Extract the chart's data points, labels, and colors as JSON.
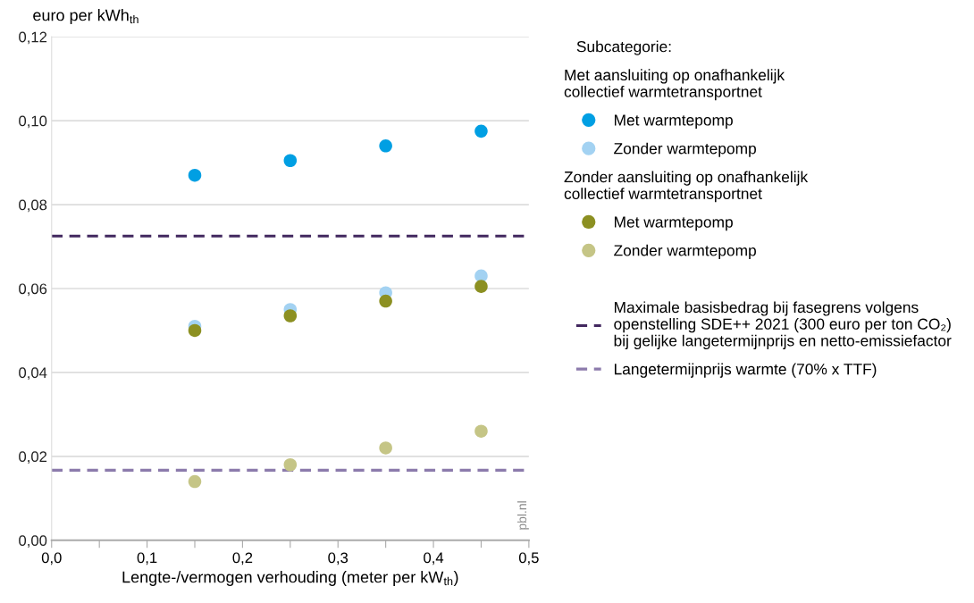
{
  "chart_data": {
    "type": "scatter",
    "ylabel": "euro per kWh$_{th}$",
    "xlabel": "Lengte-/vermogen verhouding (meter per kW$_{th}$)",
    "legend_title": "Subcategorie:",
    "annotations": [
      "Met aansluiting op onafhankelijk\ncollectief warmtetransportnet",
      "Zonder aansluiting op onafhankelijk\ncollectief warmtetransportnet",
      "pbl.nl"
    ],
    "x": [
      0.15,
      0.25,
      0.35,
      0.45
    ],
    "series": [
      {
        "name": "Met warmtepomp",
        "color": "#009fe3",
        "values": [
          0.087,
          0.0905,
          0.094,
          0.0975
        ]
      },
      {
        "name": "Zonder warmtepomp",
        "color": "#a3d2f2",
        "values": [
          0.051,
          0.055,
          0.059,
          0.063
        ]
      },
      {
        "name": "Met warmtepomp",
        "color": "#8c9022",
        "values": [
          0.05,
          0.0535,
          0.057,
          0.0605
        ]
      },
      {
        "name": "Zonder warmtepomp",
        "color": "#c5c586",
        "values": [
          0.014,
          0.018,
          0.022,
          0.026
        ]
      }
    ],
    "ref_lines": [
      {
        "axis": "y",
        "value": 0.0725,
        "label": "Maximale basisbedrag bij fasegrens volgens\nopenstelling SDE++ 2021 (300 euro per ton CO₂)\nbij gelijke langetermijnprijs en netto-emissiefactor",
        "color": "#42285f",
        "line_style": "dashed"
      },
      {
        "axis": "y",
        "value": 0.0167,
        "label": "Langetermijnprijs warmte (70% x TTF)",
        "color": "#8c7bac",
        "line_style": "dashed"
      }
    ],
    "xlim": [
      0,
      0.5
    ],
    "xticks": [
      {
        "value": 0,
        "label": "0,0"
      },
      {
        "value": 0.05,
        "label": null
      },
      {
        "value": 0.1,
        "label": "0,1"
      },
      {
        "value": 0.15,
        "label": null
      },
      {
        "value": 0.2,
        "label": "0,2"
      },
      {
        "value": 0.25,
        "label": null
      },
      {
        "value": 0.3,
        "label": "0,3"
      },
      {
        "value": 0.35,
        "label": null
      },
      {
        "value": 0.4,
        "label": "0,4"
      },
      {
        "value": 0.45,
        "label": null
      },
      {
        "value": 0.5,
        "label": "0,5"
      }
    ],
    "ylim": [
      0,
      0.12
    ],
    "yticks": [
      {
        "value": 0,
        "label": "0,00"
      },
      {
        "value": 0.02,
        "label": "0,02"
      },
      {
        "value": 0.04,
        "label": "0,04"
      },
      {
        "value": 0.06,
        "label": "0,06"
      },
      {
        "value": 0.08,
        "label": "0,08"
      },
      {
        "value": 0.1,
        "label": "0,10"
      },
      {
        "value": 0.12,
        "label": "0,12"
      }
    ],
    "grid": "y",
    "legend": "right",
    "marker": "circle"
  }
}
